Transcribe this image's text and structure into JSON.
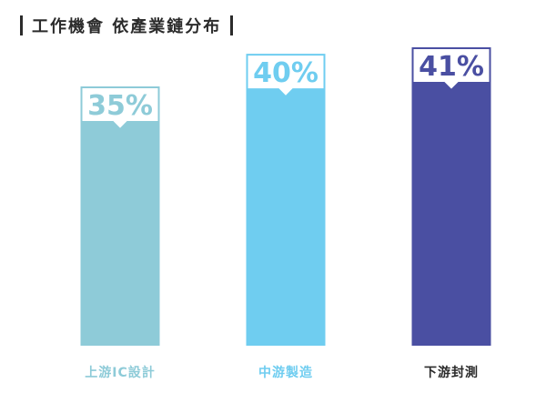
{
  "title": "工作機會 依產業鏈分布",
  "chart_data": {
    "type": "bar",
    "categories": [
      "上游IC設計",
      "中游製造",
      "下游封測"
    ],
    "values": [
      35,
      40,
      41
    ],
    "data_labels": [
      "35%",
      "40%",
      "41%"
    ],
    "ylim": [
      0,
      41
    ],
    "colors": {
      "bars": [
        "#8ecbd8",
        "#6fcdf0",
        "#4a4fa2"
      ],
      "labels": [
        "#8ecbd8",
        "#6fcdf0",
        "#2b2b2b"
      ]
    },
    "grid": false,
    "legend": "none"
  }
}
